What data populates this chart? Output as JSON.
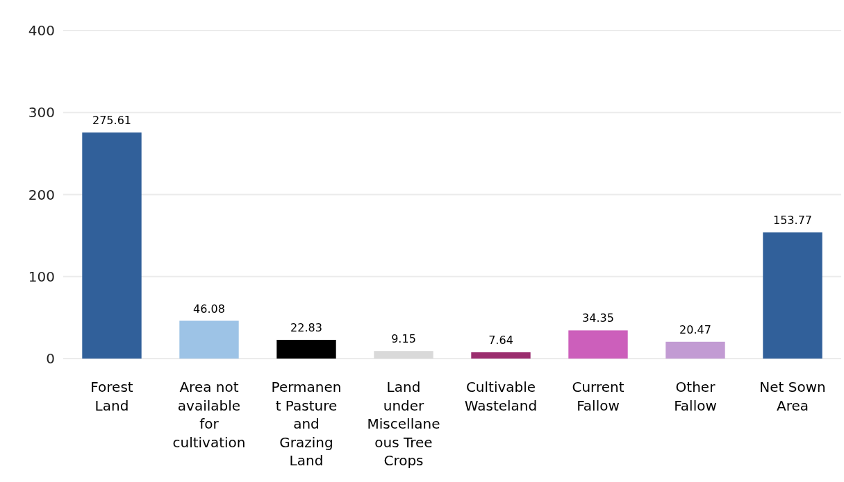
{
  "chart_data": {
    "type": "bar",
    "categories": [
      "Forest Land",
      "Area not available for cultivation",
      "Permanent Pasture and Grazing Land",
      "Land under Miscellaneous Tree Crops",
      "Cultivable Wasteland",
      "Current Fallow",
      "Other Fallow",
      "Net Sown Area"
    ],
    "values": [
      275.61,
      46.08,
      22.83,
      9.15,
      7.64,
      34.35,
      20.47,
      153.77
    ],
    "colors": [
      "#31609a",
      "#9dc3e6",
      "#000000",
      "#d9d9d9",
      "#9b2d6e",
      "#cc5fbb",
      "#c29bd3",
      "#31609a"
    ],
    "ylim": [
      0,
      400
    ],
    "yticks": [
      0,
      100,
      200,
      300,
      400
    ],
    "grid": "y",
    "data_labels": true
  }
}
